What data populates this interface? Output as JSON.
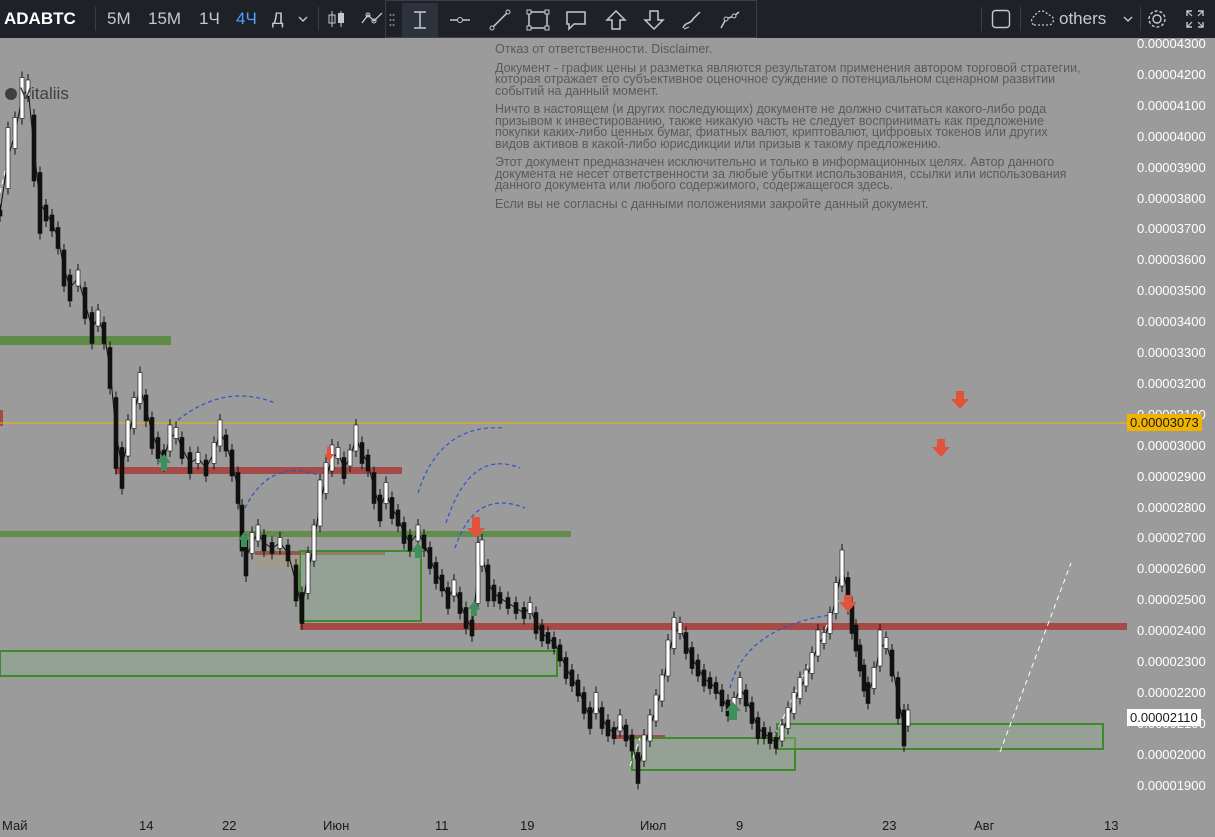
{
  "toolbar": {
    "symbol": "ADABTC",
    "timeframes": [
      {
        "label": "5М",
        "active": false
      },
      {
        "label": "15М",
        "active": false
      },
      {
        "label": "1Ч",
        "active": false
      },
      {
        "label": "4Ч",
        "active": true
      },
      {
        "label": "Д",
        "active": false
      }
    ],
    "others_label": "others",
    "accent": "#4aa3ff"
  },
  "watermark": "Vitaliis",
  "disclaimer": {
    "title": "Отказ от ответственности. Disclaimer.",
    "p1": "Документ - график цены и разметка являются результатом применения автором торговой стратегии, которая отражает его субъективное оценочное суждение о потенциальном сценарном развитии событий на данный момент.",
    "p2": "Ничто в настоящем (и других последующих) документе не должно считаться какого-либо рода призывом к инвестированию, также никакую часть не следует воспринимать как предложение покупки каких-либо ценных бумаг, фиатных валют, криптовалют, цифровых токенов или других видов активов в какой-либо юрисдикции или призыв к такому предложению.",
    "p3": "Этот документ предназначен исключительно и только в информационных целях. Автор данного документа не несет ответственности за любые убытки использования, ссылки или использования данного документа или любого содержимого, содержащегося здесь.",
    "p4": "Если вы не согласны с данными положениями закройте данный документ."
  },
  "price_axis": {
    "ticks": [
      "0.00004300",
      "0.00004200",
      "0.00004100",
      "0.00004000",
      "0.00003900",
      "0.00003800",
      "0.00003700",
      "0.00003600",
      "0.00003500",
      "0.00003400",
      "0.00003300",
      "0.00003200",
      "0.00003100",
      "0.00003000",
      "0.00002900",
      "0.00002800",
      "0.00002700",
      "0.00002600",
      "0.00002500",
      "0.00002400",
      "0.00002300",
      "0.00002200",
      "0.00002100",
      "0.00002000",
      "0.00001900"
    ],
    "alert_label": "0.00003073",
    "alert_color": "#f0b400",
    "last_label": "0.00002110"
  },
  "time_axis": {
    "ticks": [
      "Май",
      "14",
      "22",
      "Июн",
      "11",
      "19",
      "Июл",
      "9",
      "23",
      "Авг",
      "13"
    ]
  },
  "colors": {
    "support": "#5a8a3e",
    "resistance": "#a54a46",
    "arrow_up": "#3f8f5c",
    "arrow_down": "#e2533d",
    "candle": "#111111",
    "projection": "#2a55c8"
  },
  "drawing_tools": [
    "text-tool-icon",
    "horizontal-line-icon",
    "trend-line-icon",
    "rectangle-icon",
    "callout-icon",
    "arrow-up-icon",
    "arrow-down-icon",
    "brush-icon",
    "path-icon"
  ]
}
